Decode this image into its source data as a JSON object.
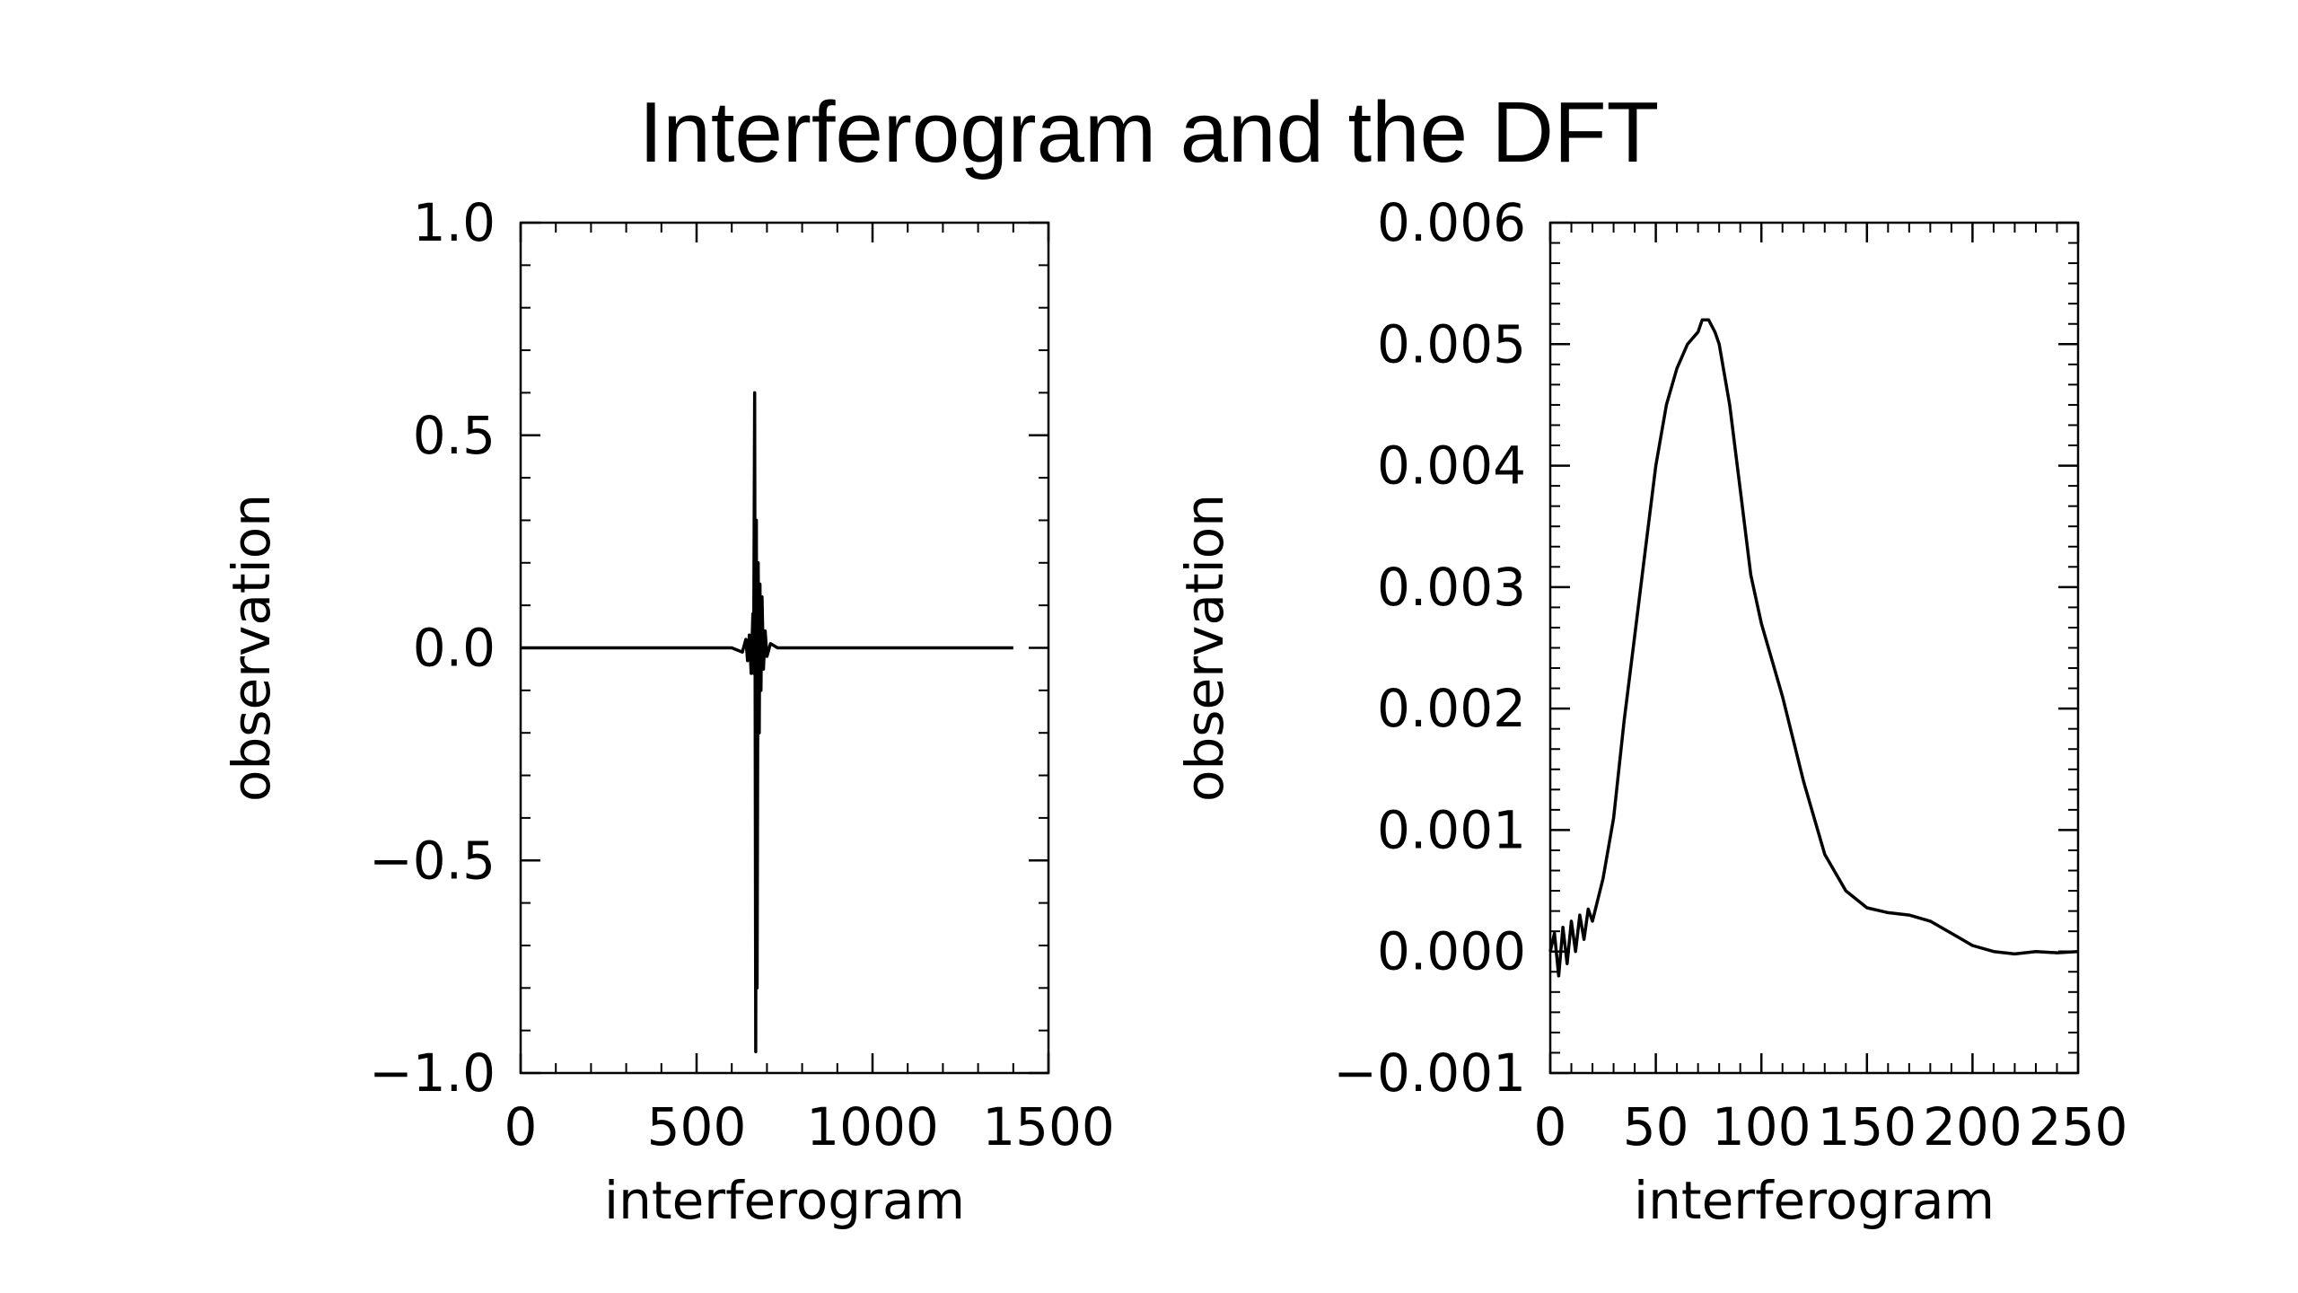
{
  "slide": {
    "title": "Interferogram and the DFT"
  },
  "chart_data": [
    {
      "type": "line",
      "title": "",
      "xlabel": "interferogram",
      "ylabel": "observation",
      "xlim": [
        0,
        1500
      ],
      "ylim": [
        -1.0,
        1.0
      ],
      "x_ticks": [
        0,
        500,
        1000,
        1500
      ],
      "x_tick_labels": [
        "0",
        "500",
        "1000",
        "1500"
      ],
      "y_ticks": [
        -1.0,
        -0.5,
        0.0,
        0.5,
        1.0
      ],
      "y_tick_labels": [
        "−1.0",
        "−0.5",
        "0.0",
        "0.5",
        "1.0"
      ],
      "grid": false,
      "legend": "none",
      "line_color": "#000000",
      "series": [
        {
          "x": [
            0,
            300,
            600,
            630,
            640,
            645,
            650,
            655,
            660,
            662,
            665,
            668,
            670,
            672,
            675,
            678,
            680,
            683,
            686,
            690,
            695,
            700,
            710,
            730,
            800,
            1000,
            1200,
            1400
          ],
          "y": [
            0.0,
            0.0,
            0.0,
            -0.01,
            0.02,
            -0.03,
            0.03,
            -0.06,
            0.08,
            -0.06,
            0.6,
            -0.95,
            0.3,
            -0.8,
            0.2,
            -0.2,
            0.15,
            -0.1,
            0.12,
            -0.05,
            0.04,
            -0.02,
            0.01,
            0.0,
            0.0,
            0.0,
            0.0,
            0.0
          ]
        }
      ]
    },
    {
      "type": "line",
      "title": "",
      "xlabel": "interferogram",
      "ylabel": "observation",
      "xlim": [
        0,
        250
      ],
      "ylim": [
        -0.001,
        0.006
      ],
      "x_ticks": [
        0,
        50,
        100,
        150,
        200,
        250
      ],
      "x_tick_labels": [
        "0",
        "50",
        "100",
        "150",
        "200",
        "250"
      ],
      "y_ticks": [
        -0.001,
        0.0,
        0.001,
        0.002,
        0.003,
        0.004,
        0.005,
        0.006
      ],
      "y_tick_labels": [
        "−0.001",
        "0.000",
        "0.001",
        "0.002",
        "0.003",
        "0.004",
        "0.005",
        "0.006"
      ],
      "grid": false,
      "legend": "none",
      "line_color": "#000000",
      "series": [
        {
          "x": [
            0,
            2,
            4,
            6,
            8,
            10,
            12,
            14,
            16,
            18,
            20,
            25,
            30,
            35,
            40,
            45,
            50,
            55,
            60,
            65,
            70,
            72,
            75,
            78,
            80,
            85,
            90,
            95,
            100,
            110,
            120,
            130,
            140,
            150,
            160,
            170,
            180,
            190,
            200,
            210,
            220,
            230,
            240,
            250
          ],
          "y": [
            0.0,
            0.00015,
            -0.0002,
            0.0002,
            -0.0001,
            0.00025,
            0.0,
            0.0003,
            0.0001,
            0.00035,
            0.00025,
            0.0006,
            0.0011,
            0.0019,
            0.0026,
            0.0033,
            0.004,
            0.0045,
            0.0048,
            0.005,
            0.0051,
            0.0052,
            0.0052,
            0.0051,
            0.005,
            0.0045,
            0.0038,
            0.0031,
            0.0027,
            0.0021,
            0.0014,
            0.0008,
            0.0005,
            0.00036,
            0.00032,
            0.0003,
            0.00025,
            0.00015,
            5e-05,
            0.0,
            -2e-05,
            0.0,
            -1e-05,
            0.0
          ]
        }
      ]
    }
  ]
}
